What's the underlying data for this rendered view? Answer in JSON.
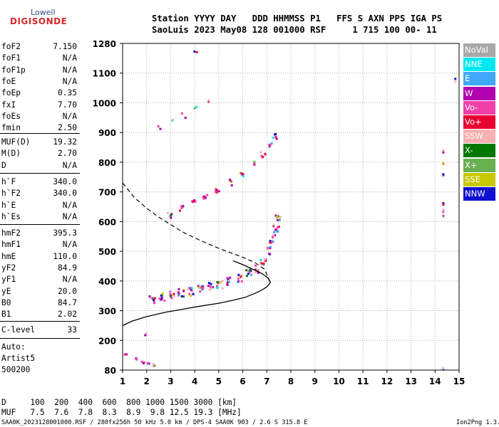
{
  "header": {
    "logo_top": "Lowell",
    "logo_bottom": "DIGISONDE",
    "line1": "Station YYYY DAY   DDD HHMMSS P1   FFS S AXN PPS IGA PS",
    "line2": "SaoLuis 2023 May08 128 001000 RSF     1 715 100 00- 11"
  },
  "params": {
    "group1": [
      {
        "name": "foF2",
        "value": "7.150"
      },
      {
        "name": "foF1",
        "value": "N/A"
      },
      {
        "name": "foF1p",
        "value": "N/A"
      },
      {
        "name": "foE",
        "value": "N/A"
      },
      {
        "name": "foEp",
        "value": "0.35"
      },
      {
        "name": "fxI",
        "value": "7.70"
      },
      {
        "name": "foEs",
        "value": "N/A"
      },
      {
        "name": "fmin",
        "value": "2.50"
      }
    ],
    "group2": [
      {
        "name": "MUF(D)",
        "value": "19.32"
      },
      {
        "name": "M(D)",
        "value": "2.70"
      },
      {
        "name": "D",
        "value": "N/A"
      }
    ],
    "group3": [
      {
        "name": "h`F",
        "value": "340.0"
      },
      {
        "name": "h`F2",
        "value": "340.0"
      },
      {
        "name": "h`E",
        "value": "N/A"
      },
      {
        "name": "h`Es",
        "value": "N/A"
      }
    ],
    "group4": [
      {
        "name": "hmF2",
        "value": "395.3"
      },
      {
        "name": "hmF1",
        "value": "N/A"
      },
      {
        "name": "hmE",
        "value": "110.0"
      },
      {
        "name": "yF2",
        "value": "84.9"
      },
      {
        "name": "yF1",
        "value": "N/A"
      },
      {
        "name": "yE",
        "value": "20.0"
      },
      {
        "name": "B0",
        "value": "84.7"
      },
      {
        "name": "B1",
        "value": "2.02"
      }
    ],
    "group5": [
      {
        "name": "C-level",
        "value": "33"
      }
    ],
    "auto_lines": [
      "Auto:",
      "Artist5",
      "500200"
    ]
  },
  "dmuf": {
    "d_line": "D     100  200  400  600  800 1000 1500 3000 [km]",
    "muf_line": "MUF   7.5  7.6  7.8  8.3  8.9  9.8 12.5 19.3 [MHz]"
  },
  "footer": {
    "left": "SAA0K_2023128001000.RSF / 280fx256h 50 kHz 5.0 km / DPS-4 SAA0K 903 / 2.6 S 315.8 E",
    "right": "Ion2Png 1.3.17"
  },
  "legend": [
    {
      "label": "NoVal",
      "color": "#a8a8a8"
    },
    {
      "label": "NNE",
      "color": "#00e8f0"
    },
    {
      "label": "E",
      "color": "#40a8f8"
    },
    {
      "label": "W",
      "color": "#b000b0"
    },
    {
      "label": "Vo-",
      "color": "#f040a8"
    },
    {
      "label": "Vo+",
      "color": "#e80030"
    },
    {
      "label": "SSW",
      "color": "#f8b0b0"
    },
    {
      "label": "X-",
      "color": "#007800"
    },
    {
      "label": "X+",
      "color": "#68b050"
    },
    {
      "label": "SSE",
      "color": "#c8c800"
    },
    {
      "label": "NNW",
      "color": "#1010d0"
    }
  ],
  "chart_data": {
    "type": "scatter",
    "xlim": [
      1,
      15
    ],
    "x_ticks": [
      1,
      2,
      3,
      4,
      5,
      6,
      7,
      8,
      9,
      10,
      11,
      12,
      13,
      14,
      15
    ],
    "y_ticks": [
      80,
      200,
      300,
      400,
      500,
      600,
      700,
      800,
      900,
      1000,
      1100,
      1280
    ],
    "grid": true,
    "series": [
      {
        "name": "profile",
        "points": [
          [
            1.0,
            250
          ],
          [
            1.4,
            265
          ],
          [
            2.0,
            280
          ],
          [
            2.8,
            295
          ],
          [
            3.5,
            305
          ],
          [
            4.2,
            315
          ],
          [
            5.0,
            325
          ],
          [
            5.6,
            335
          ],
          [
            6.1,
            345
          ],
          [
            6.5,
            358
          ],
          [
            6.8,
            370
          ],
          [
            7.0,
            380
          ],
          [
            7.15,
            395
          ]
        ]
      },
      {
        "name": "profile-upper",
        "points": [
          [
            7.15,
            395
          ],
          [
            7.05,
            410
          ],
          [
            6.8,
            425
          ],
          [
            6.4,
            440
          ],
          [
            6.0,
            455
          ],
          [
            5.6,
            468
          ]
        ]
      },
      {
        "name": "extrapolated",
        "points": [
          [
            1.0,
            730
          ],
          [
            1.5,
            680
          ],
          [
            2.0,
            645
          ],
          [
            2.5,
            615
          ],
          [
            3.0,
            590
          ],
          [
            3.5,
            565
          ],
          [
            4.0,
            545
          ],
          [
            4.5,
            527
          ],
          [
            5.0,
            510
          ],
          [
            5.5,
            495
          ],
          [
            6.0,
            480
          ],
          [
            6.5,
            462
          ],
          [
            6.9,
            440
          ],
          [
            7.15,
            395
          ]
        ]
      },
      {
        "name": "F-trace",
        "points": [
          [
            2.2,
            340
          ],
          [
            2.6,
            350
          ],
          [
            3.0,
            356
          ],
          [
            3.4,
            362
          ],
          [
            3.8,
            368
          ],
          [
            4.2,
            375
          ],
          [
            4.6,
            383
          ],
          [
            5.0,
            392
          ],
          [
            5.4,
            402
          ],
          [
            5.8,
            414
          ],
          [
            6.2,
            428
          ],
          [
            6.5,
            445
          ],
          [
            6.8,
            470
          ],
          [
            7.0,
            505
          ],
          [
            7.2,
            545
          ],
          [
            7.35,
            580
          ],
          [
            7.45,
            610
          ]
        ]
      },
      {
        "name": "2F-trace",
        "points": [
          [
            2.9,
            625
          ],
          [
            3.4,
            650
          ],
          [
            3.9,
            670
          ],
          [
            4.4,
            690
          ],
          [
            4.9,
            710
          ],
          [
            5.4,
            735
          ],
          [
            5.9,
            760
          ],
          [
            6.4,
            795
          ],
          [
            6.8,
            830
          ],
          [
            7.1,
            860
          ],
          [
            7.3,
            890
          ]
        ]
      },
      {
        "name": "upper-scatter",
        "points": [
          [
            2.5,
            920
          ],
          [
            3.0,
            940
          ],
          [
            3.5,
            960
          ],
          [
            4.0,
            985
          ],
          [
            4.6,
            1010
          ],
          [
            4.0,
            1230
          ]
        ]
      },
      {
        "name": "low-echoes",
        "points": [
          [
            1.5,
            130
          ],
          [
            1.8,
            115
          ],
          [
            2.0,
            110
          ],
          [
            2.3,
            105
          ],
          [
            1.9,
            225
          ],
          [
            1.1,
            150
          ]
        ]
      },
      {
        "name": "right-column",
        "points": [
          [
            14.3,
            840
          ],
          [
            14.3,
            800
          ],
          [
            14.3,
            760
          ],
          [
            14.3,
            660
          ],
          [
            14.3,
            640
          ],
          [
            14.3,
            620
          ],
          [
            14.3,
            86
          ],
          [
            14.8,
            1080
          ]
        ]
      }
    ]
  }
}
